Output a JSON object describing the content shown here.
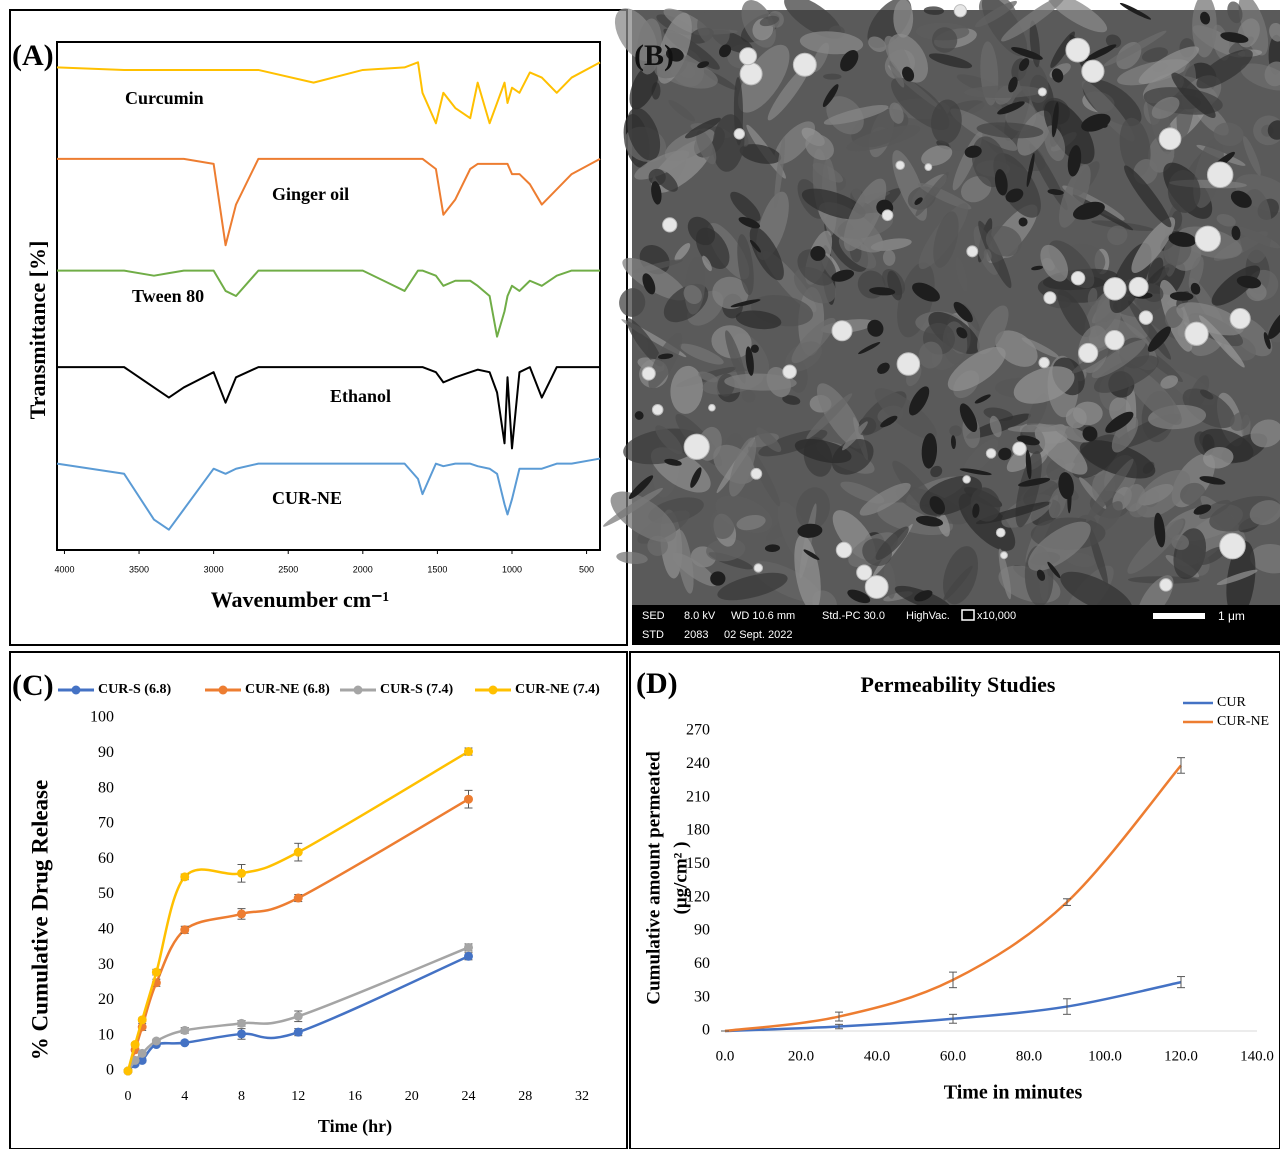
{
  "chart_data": [
    {
      "type": "line",
      "panel_label": "(A)",
      "x_label": "Wavenumber cm⁻¹",
      "y_label": "Transmittance [%]",
      "xlim": [
        4050,
        410
      ],
      "ylim": [
        0,
        100
      ],
      "xticks": [
        4000,
        3500,
        3000,
        2500,
        2000,
        1500,
        1000,
        500
      ],
      "x": [
        4050,
        3600,
        3400,
        3300,
        3200,
        3000,
        2920,
        2850,
        2700,
        2330,
        2000,
        1720,
        1630,
        1600,
        1510,
        1460,
        1380,
        1280,
        1230,
        1150,
        1100,
        1050,
        1030,
        1000,
        950,
        880,
        800,
        700,
        600,
        410
      ],
      "series": [
        {
          "name": "Curcumin",
          "color": "#ffc000",
          "values": [
            95,
            94.5,
            94.5,
            94.5,
            94.5,
            94.5,
            94.5,
            94.5,
            94.5,
            92,
            94.5,
            95,
            96,
            90,
            84,
            90,
            87,
            85,
            92,
            84,
            88,
            92,
            88,
            91,
            90,
            94,
            93,
            90,
            93,
            96
          ]
        },
        {
          "name": "Ginger oil",
          "color": "#ed7d31",
          "values": [
            77,
            77,
            77,
            77,
            77,
            76,
            60,
            68,
            77,
            77,
            77,
            77,
            77,
            77,
            75,
            66,
            69,
            75,
            76,
            76,
            76,
            76,
            76,
            74,
            74,
            72,
            68,
            71,
            74,
            77
          ]
        },
        {
          "name": "Tween 80",
          "color": "#70ad47",
          "values": [
            55,
            55,
            54,
            54.5,
            55,
            55,
            51,
            50,
            55,
            55,
            55,
            51,
            55,
            55,
            54,
            52,
            53,
            53,
            52,
            50,
            42,
            47,
            50,
            52,
            51,
            53,
            52,
            54,
            55,
            55
          ]
        },
        {
          "name": "Ethanol",
          "color": "#000000",
          "values": [
            36,
            36,
            32,
            30,
            32,
            35,
            29,
            34,
            36,
            36,
            36,
            36,
            36,
            36,
            35,
            33,
            34,
            35,
            35.5,
            35,
            31,
            21,
            34,
            20,
            35,
            36,
            30,
            36,
            36,
            36
          ]
        },
        {
          "name": "CUR-NE",
          "color": "#5b9bd5",
          "values": [
            17,
            15,
            6,
            4,
            8,
            16,
            15,
            16,
            17,
            17,
            17,
            17,
            14,
            11,
            17,
            16.5,
            17,
            17,
            16.5,
            16,
            15,
            9,
            7,
            10,
            16,
            16,
            16,
            17,
            17,
            18
          ]
        }
      ]
    },
    {
      "type": "image",
      "panel_label": "(B)",
      "info": [
        [
          "SED",
          "8.0 kV",
          "WD 10.6 mm",
          "Std.-PC 30.0",
          "HighVac.",
          "x10,000"
        ],
        [
          "STD",
          "2083",
          "02 Sept. 2022"
        ]
      ],
      "scale_bar": "1 μm"
    },
    {
      "type": "line",
      "panel_label": "(C)",
      "x_label": "Time (hr)",
      "y_label": "% Cumulative Drug Release",
      "legend": "top",
      "markers": true,
      "xlim": [
        0,
        32
      ],
      "ylim": [
        0,
        100
      ],
      "xticks": [
        0,
        4,
        8,
        12,
        16,
        20,
        24,
        28,
        32
      ],
      "yticks": [
        0,
        10,
        20,
        30,
        40,
        50,
        60,
        70,
        80,
        90,
        100
      ],
      "x": [
        0,
        0.5,
        1,
        2,
        4,
        8,
        12,
        24
      ],
      "series": [
        {
          "name": "CUR-S (6.8)",
          "color": "#4472c4",
          "values": [
            0,
            2,
            3,
            7.5,
            8,
            10.5,
            11,
            32.5
          ],
          "errors": [
            0.5,
            0.5,
            0.5,
            0.5,
            0.5,
            1.5,
            1,
            1
          ]
        },
        {
          "name": "CUR-NE (6.8)",
          "color": "#ed7d31",
          "values": [
            0,
            6,
            12.5,
            25,
            40,
            44.5,
            49,
            77
          ],
          "errors": [
            0.5,
            0.5,
            1,
            1,
            1,
            1.5,
            1,
            2.5
          ]
        },
        {
          "name": "CUR-S (7.4)",
          "color": "#a5a5a5",
          "values": [
            0,
            3,
            5,
            8.5,
            11.5,
            13.5,
            15.5,
            35
          ],
          "errors": [
            0.5,
            0.5,
            0.5,
            0.5,
            0.8,
            0.8,
            1.5,
            1
          ]
        },
        {
          "name": "CUR-NE (7.4)",
          "color": "#ffc000",
          "values": [
            0,
            7.5,
            14.5,
            28,
            55,
            56,
            62,
            90.5
          ],
          "errors": [
            0.5,
            0.5,
            0.5,
            0.8,
            0.8,
            2.5,
            2.5,
            1
          ]
        }
      ]
    },
    {
      "type": "line",
      "panel_label": "(D)",
      "title": "Permeability Studies",
      "x_label": "Time in minutes",
      "y_label": [
        "Cumulative amount permeated",
        "(μg/cm² )"
      ],
      "legend": "upper right",
      "xlim": [
        0,
        140
      ],
      "ylim": [
        0,
        270
      ],
      "xticks": [
        {
          "value": 0,
          "label": "0.0"
        },
        {
          "value": 20,
          "label": "20.0"
        },
        {
          "value": 40,
          "label": "40.0"
        },
        {
          "value": 60,
          "label": "60.0"
        },
        {
          "value": 80,
          "label": "80.0"
        },
        {
          "value": 100,
          "label": "100.0"
        },
        {
          "value": 120,
          "label": "120.0"
        },
        {
          "value": 140,
          "label": "140.0"
        }
      ],
      "yticks": [
        0,
        30,
        60,
        90,
        120,
        150,
        180,
        210,
        240,
        270
      ],
      "x": [
        0,
        30,
        60,
        90,
        120
      ],
      "series": [
        {
          "name": "CUR",
          "color": "#4472c4",
          "values": [
            0,
            4,
            11,
            22,
            44
          ],
          "errors": [
            0,
            2,
            4,
            7,
            5
          ]
        },
        {
          "name": "CUR-NE",
          "color": "#ed7d31",
          "values": [
            0,
            13,
            46,
            116,
            239
          ],
          "errors": [
            0,
            4,
            7,
            3,
            7
          ]
        }
      ]
    }
  ]
}
